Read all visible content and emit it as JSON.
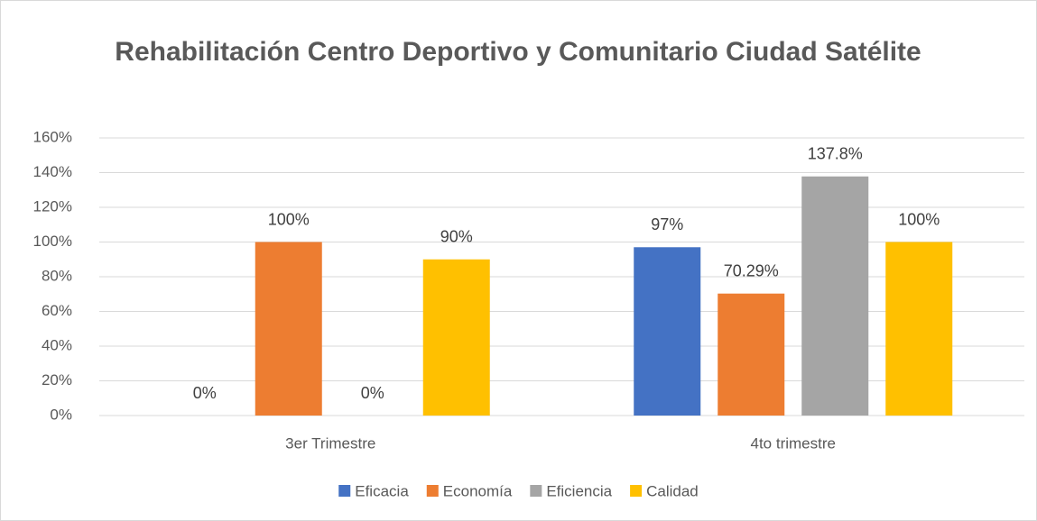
{
  "chart_data": {
    "type": "bar",
    "title": "Rehabilitación Centro Deportivo y Comunitario Ciudad Satélite",
    "categories": [
      "3er Trimestre",
      "4to trimestre"
    ],
    "series": [
      {
        "name": "Eficacia",
        "color": "#4472c4",
        "values": [
          0,
          97
        ],
        "value_labels": [
          "0%",
          "97%"
        ]
      },
      {
        "name": "Economía",
        "color": "#ed7d31",
        "values": [
          100,
          70.29
        ],
        "value_labels": [
          "100%",
          "70.29%"
        ]
      },
      {
        "name": "Eficiencia",
        "color": "#a5a5a5",
        "values": [
          0,
          137.8
        ],
        "value_labels": [
          "0%",
          "137.8%"
        ]
      },
      {
        "name": "Calidad",
        "color": "#ffc000",
        "values": [
          90,
          100
        ],
        "value_labels": [
          "90%",
          "100%"
        ]
      }
    ],
    "ylim": [
      0,
      160
    ],
    "yticks": [
      {
        "value": 0,
        "label": "0%"
      },
      {
        "value": 20,
        "label": "20%"
      },
      {
        "value": 40,
        "label": "40%"
      },
      {
        "value": 60,
        "label": "60%"
      },
      {
        "value": 80,
        "label": "80%"
      },
      {
        "value": 100,
        "label": "100%"
      },
      {
        "value": 120,
        "label": "120%"
      },
      {
        "value": 140,
        "label": "140%"
      },
      {
        "value": 160,
        "label": "160%"
      }
    ],
    "grid": true,
    "legend": "bottom"
  }
}
